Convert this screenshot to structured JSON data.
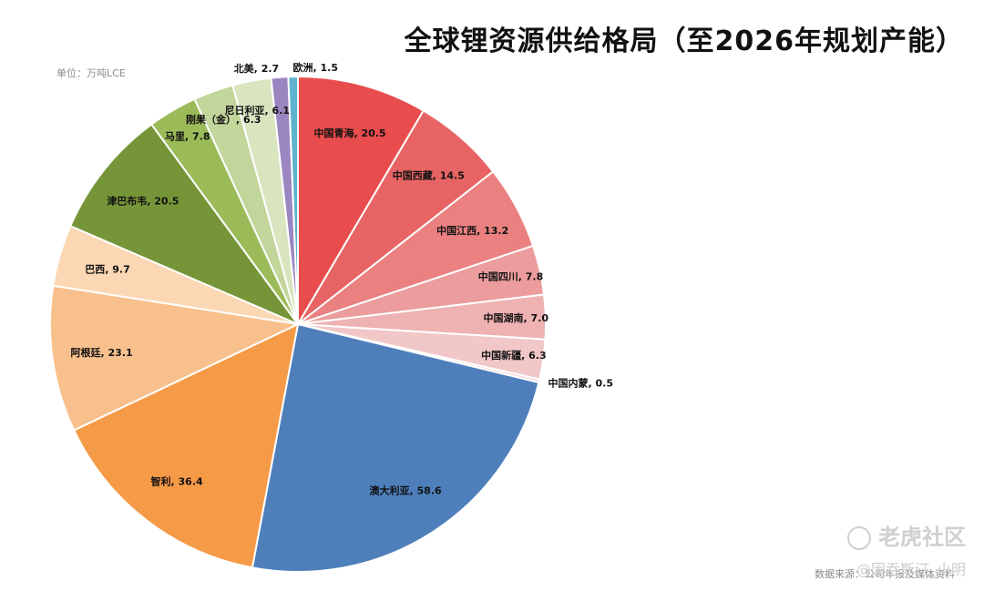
{
  "title": "全球锂资源供给格局（至2026年规划产能）",
  "unit_label": "单位：万吨LCE",
  "source": "数据来源：公司年报及媒体资料",
  "watermark": {
    "logo_text": "老虎社区",
    "user_text": "@因吞斯汀_小明"
  },
  "chart_data": {
    "type": "pie",
    "title": "全球锂资源供给格局（至2026年规划产能）",
    "unit": "单位：万吨LCE",
    "start_angle_deg": 0,
    "direction": "clockwise",
    "slices": [
      {
        "label": "中国青海",
        "value": 20.5,
        "color": "#E84C4C",
        "text": "中国青海, 20.5"
      },
      {
        "label": "中国西藏",
        "value": 14.5,
        "color": "#E86464",
        "text": "中国西藏, 14.5"
      },
      {
        "label": "中国江西",
        "value": 13.2,
        "color": "#EA8080",
        "text": "中国江西, 13.2"
      },
      {
        "label": "中国四川",
        "value": 7.8,
        "color": "#EC9C9C",
        "text": "中国四川, 7.8"
      },
      {
        "label": "中国湖南",
        "value": 7.0,
        "color": "#EEB2B2",
        "text": "中国湖南, 7.0"
      },
      {
        "label": "中国新疆",
        "value": 6.3,
        "color": "#F2C7C7",
        "text": "中国新疆, 6.3"
      },
      {
        "label": "中国内蒙",
        "value": 0.5,
        "color": "#F4D7D7",
        "text": "中国内蒙, 0.5"
      },
      {
        "label": "澳大利亚",
        "value": 58.6,
        "color": "#4E7FBB",
        "text": "澳大利亚, 58.6"
      },
      {
        "label": "智利",
        "value": 36.4,
        "color": "#F59A47",
        "text": "智利, 36.4"
      },
      {
        "label": "阿根廷",
        "value": 23.1,
        "color": "#F8C08C",
        "text": "阿根廷, 23.1"
      },
      {
        "label": "巴西",
        "value": 9.7,
        "color": "#FBD7B3",
        "text": "巴西, 9.7"
      },
      {
        "label": "津巴布韦",
        "value": 20.5,
        "color": "#769538",
        "text": "津巴布韦, 20.5"
      },
      {
        "label": "马里",
        "value": 7.8,
        "color": "#9BBB59",
        "text": "马里, 7.8"
      },
      {
        "label": "刚果（金）",
        "value": 6.3,
        "color": "#C2D69B",
        "text": "刚果（金）, 6.3"
      },
      {
        "label": "尼日利亚",
        "value": 6.1,
        "color": "#D8E5BF",
        "text": "尼日利亚, 6.1"
      },
      {
        "label": "北美",
        "value": 2.7,
        "color": "#9B86C1",
        "text": "北美, 2.7"
      },
      {
        "label": "欧洲",
        "value": 1.5,
        "color": "#5FB3CE",
        "text": "欧洲, 1.5"
      }
    ]
  }
}
